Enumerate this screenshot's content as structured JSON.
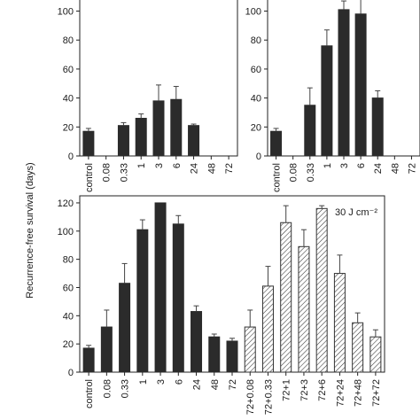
{
  "figure": {
    "ylabel": "Recurrence-free survival (days)"
  },
  "chart_data": [
    {
      "type": "bar",
      "panel": "top-left",
      "categories": [
        "control",
        "0.08",
        "0.33",
        "1",
        "3",
        "6",
        "24",
        "48",
        "72"
      ],
      "values": [
        17,
        0,
        21,
        26,
        38,
        39,
        21,
        0,
        0
      ],
      "errors": [
        2,
        0,
        2,
        3,
        11,
        9,
        1,
        0,
        0
      ],
      "ylim": [
        0,
        115
      ],
      "yticks": [
        0,
        20,
        40,
        60,
        80,
        100
      ],
      "annotation": "",
      "bar_color": "#2b2b2b"
    },
    {
      "type": "bar",
      "panel": "top-right",
      "categories": [
        "control",
        "0.08",
        "0.33",
        "1",
        "3",
        "6",
        "24",
        "48",
        "72"
      ],
      "values": [
        17,
        0,
        35,
        76,
        101,
        98,
        40,
        0,
        0
      ],
      "errors": [
        2,
        0,
        12,
        11,
        6,
        10,
        5,
        0,
        0
      ],
      "ylim": [
        0,
        115
      ],
      "yticks": [
        0,
        20,
        40,
        60,
        80,
        100
      ],
      "annotation": "",
      "bar_color": "#2b2b2b"
    },
    {
      "type": "bar",
      "panel": "bottom",
      "categories": [
        "control",
        "0.08",
        "0.33",
        "1",
        "3",
        "6",
        "24",
        "48",
        "72",
        "72+0.08",
        "72+0.33",
        "72+1",
        "72+3",
        "72+6",
        "72+24",
        "72+48",
        "72+72"
      ],
      "values": [
        17,
        32,
        63,
        101,
        120,
        105,
        43,
        25,
        22,
        32,
        61,
        106,
        89,
        116,
        70,
        35,
        25
      ],
      "errors": [
        2,
        12,
        14,
        7,
        0,
        6,
        4,
        2,
        2,
        12,
        14,
        12,
        12,
        2,
        13,
        7,
        5
      ],
      "hatched": [
        false,
        false,
        false,
        false,
        false,
        false,
        false,
        false,
        false,
        true,
        true,
        true,
        true,
        true,
        true,
        true,
        true
      ],
      "ylim": [
        0,
        125
      ],
      "yticks": [
        0,
        20,
        40,
        60,
        80,
        100,
        120
      ],
      "annotation": "30 J cm⁻²",
      "bar_color": "#2b2b2b"
    }
  ]
}
